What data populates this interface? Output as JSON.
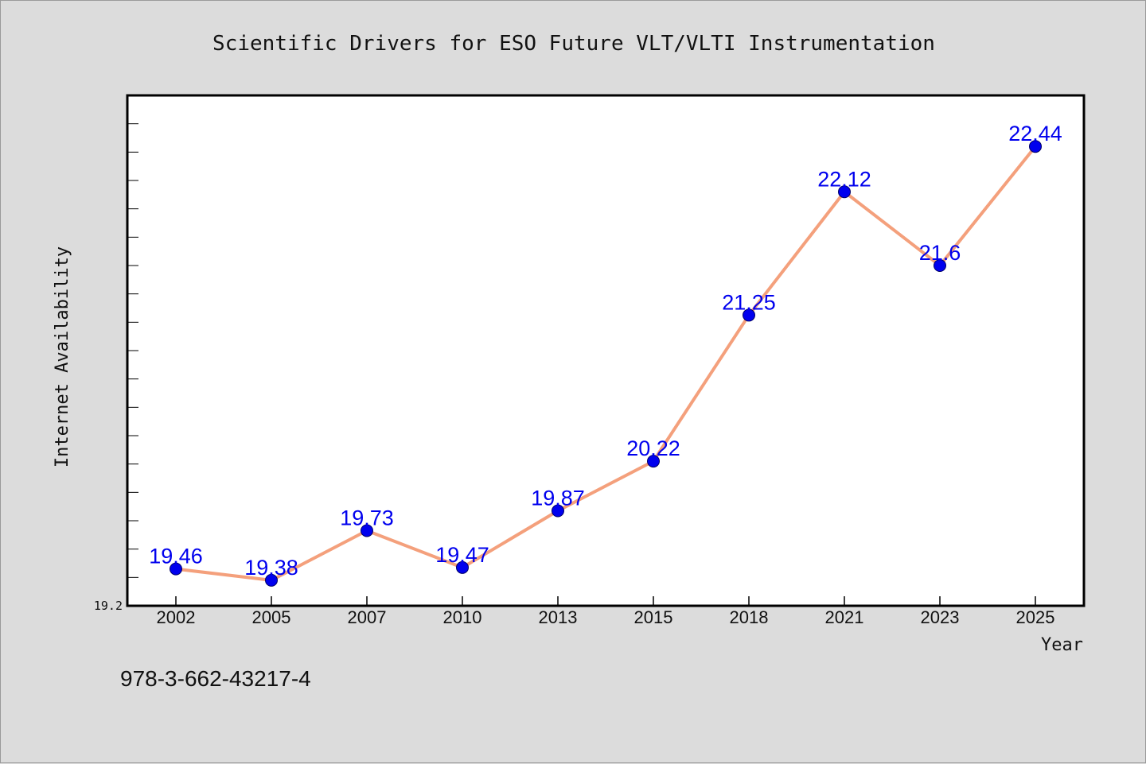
{
  "chart_data": {
    "type": "line",
    "title": "Scientific Drivers for ESO Future VLT/VLTI Instrumentation",
    "xlabel": "Year",
    "ylabel": "Internet Availability",
    "categories": [
      "2002",
      "2005",
      "2007",
      "2010",
      "2013",
      "2015",
      "2018",
      "2021",
      "2023",
      "2025"
    ],
    "series": [
      {
        "values": [
          19.46,
          19.38,
          19.73,
          19.47,
          19.87,
          20.22,
          21.25,
          22.12,
          21.6,
          22.44
        ]
      }
    ],
    "data_labels": [
      "19.46",
      "19.38",
      "19.73",
      "19.47",
      "19.87",
      "20.22",
      "21.25",
      "22.12",
      "21.6",
      "22.44"
    ],
    "ylim": [
      19.2,
      22.8
    ],
    "y_tick_labels": [
      "19.2"
    ],
    "grid": false,
    "line_color": "#f4a07c",
    "marker_color": "#0000ee",
    "label_color": "#0000ee"
  },
  "footnote": "978-3-662-43217-4"
}
